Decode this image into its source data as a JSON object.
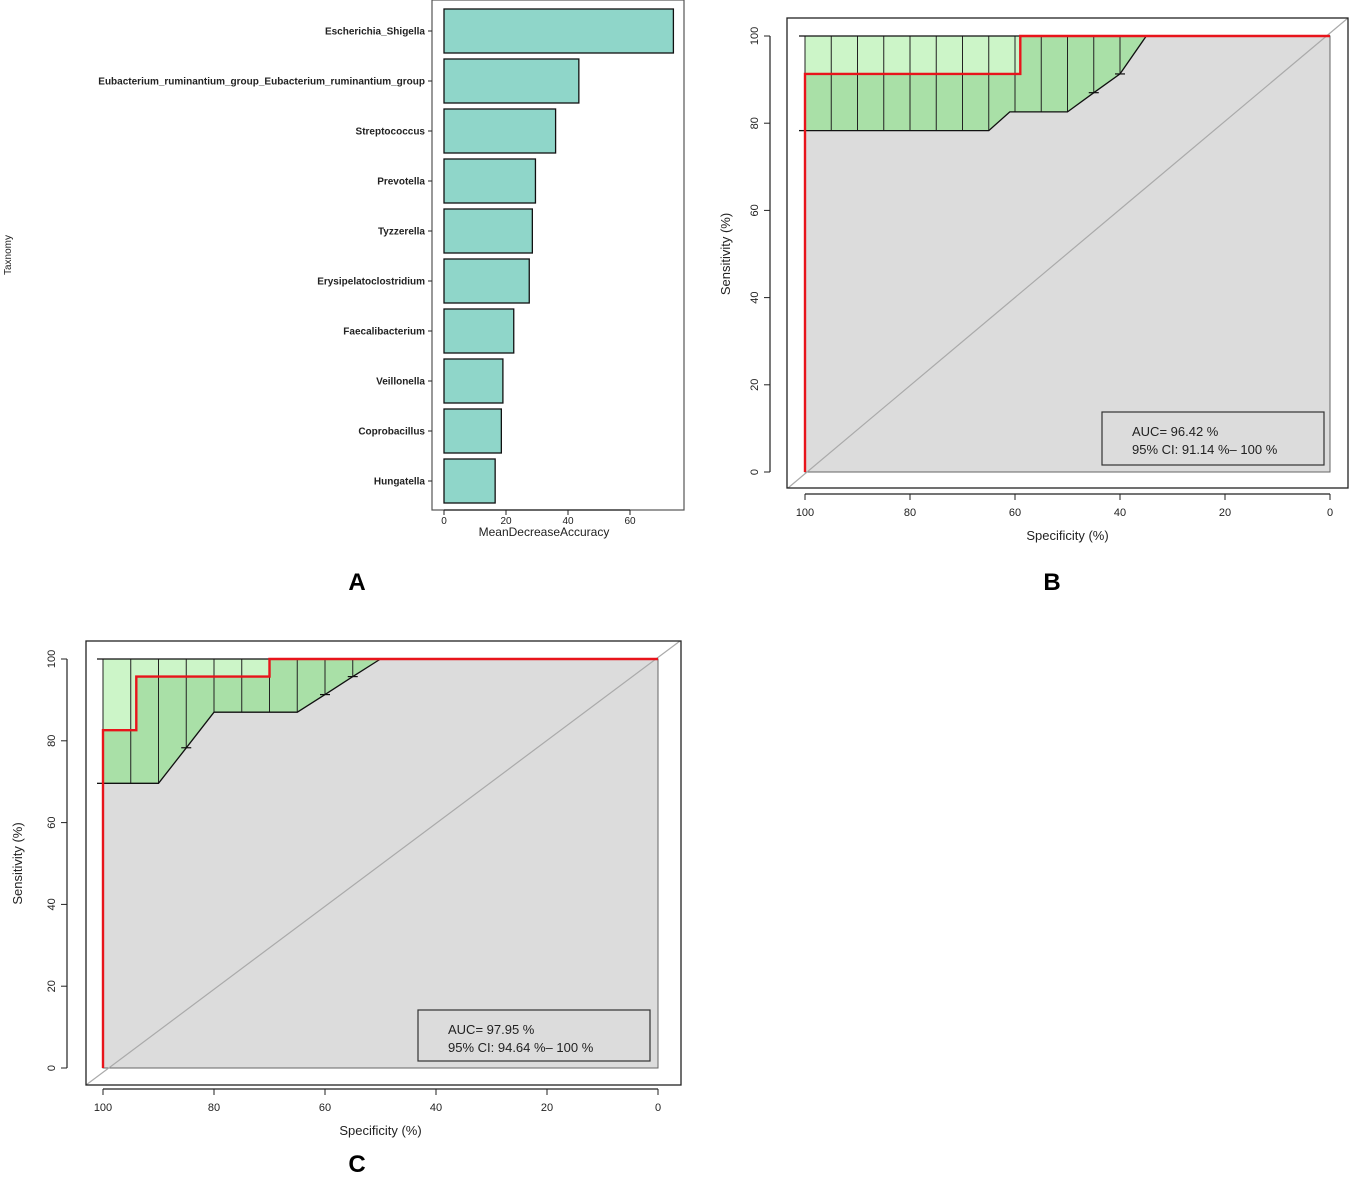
{
  "chart_data": [
    {
      "id": "A",
      "type": "bar",
      "orientation": "horizontal",
      "panel_label": "A",
      "categories": [
        "Escherichia_Shigella",
        "Eubacterium_ruminantium_group_Eubacterium_ruminantium_group",
        "Streptococcus",
        "Prevotella",
        "Tyzzerella",
        "Erysipelatoclostridium",
        "Faecalibacterium",
        "Veillonella",
        "Coprobacillus",
        "Hungatella"
      ],
      "values": [
        74,
        43.5,
        36,
        29.5,
        28.5,
        27.5,
        22.5,
        19,
        18.5,
        16.5
      ],
      "xlabel": "MeanDecreaseAccuracy",
      "ylabel": "Taxnomy",
      "xticks": [
        0,
        20,
        40,
        60
      ],
      "xlim": [
        0,
        78
      ],
      "colors": {
        "bar": "#8fd6c9"
      }
    },
    {
      "id": "B",
      "type": "line",
      "subtype": "roc",
      "panel_label": "B",
      "xlabel": "Specificity (%)",
      "ylabel": "Sensitivity (%)",
      "xticks": [
        100,
        80,
        60,
        40,
        20,
        0
      ],
      "yticks": [
        0,
        20,
        40,
        60,
        80,
        100
      ],
      "xlim": [
        100,
        0
      ],
      "ylim": [
        0,
        100
      ],
      "auc_text": "AUC= 96.42 %",
      "ci_text": "95% CI: 91.14 %– 100 %",
      "roc": {
        "x": [
          100,
          100,
          59,
          59,
          0
        ],
        "y": [
          0,
          91.3,
          91.3,
          100,
          100
        ]
      },
      "ci_lower": {
        "x": [
          100,
          65,
          61,
          50,
          45,
          40,
          35
        ],
        "y": [
          78.3,
          78.3,
          82.6,
          82.6,
          87,
          91.3,
          100
        ]
      },
      "ci_upper": {
        "x": [
          100,
          35
        ],
        "y": [
          100,
          100
        ]
      },
      "ci_bin_x": [
        100,
        95,
        90,
        85,
        80,
        75,
        70,
        65,
        60,
        55,
        50,
        45,
        40
      ],
      "ci_ticks": [
        {
          "x": 45,
          "y": 87
        },
        {
          "x": 40,
          "y": 91.3
        }
      ],
      "colors": {
        "roc": "#e8141b",
        "ci_light": "#ccf5c8",
        "ci_dark": "#a9e0a7",
        "panel_bg": "#dcdcdc",
        "diag": "#aaaaaa"
      }
    },
    {
      "id": "C",
      "type": "line",
      "subtype": "roc",
      "panel_label": "C",
      "xlabel": "Specificity (%)",
      "ylabel": "Sensitivity (%)",
      "xticks": [
        100,
        80,
        60,
        40,
        20,
        0
      ],
      "yticks": [
        0,
        20,
        40,
        60,
        80,
        100
      ],
      "xlim": [
        100,
        0
      ],
      "ylim": [
        0,
        100
      ],
      "auc_text": "AUC= 97.95 %",
      "ci_text": "95% CI: 94.64 %– 100 %",
      "roc": {
        "x": [
          100,
          100,
          94,
          94,
          70,
          70,
          0
        ],
        "y": [
          0,
          82.6,
          82.6,
          95.7,
          95.7,
          100,
          100
        ]
      },
      "ci_lower": {
        "x": [
          100,
          90,
          85,
          80,
          65,
          60,
          55,
          50
        ],
        "y": [
          69.6,
          69.6,
          78.3,
          87,
          87,
          91.3,
          95.7,
          100
        ]
      },
      "ci_upper": {
        "x": [
          100,
          50
        ],
        "y": [
          100,
          100
        ]
      },
      "ci_bin_x": [
        100,
        95,
        90,
        85,
        80,
        75,
        70,
        65,
        60,
        55,
        50
      ],
      "ci_ticks": [
        {
          "x": 85,
          "y": 78.3
        },
        {
          "x": 60,
          "y": 91.3
        },
        {
          "x": 55,
          "y": 95.7
        }
      ],
      "colors": {
        "roc": "#e8141b",
        "ci_light": "#ccf5c8",
        "ci_dark": "#a9e0a7",
        "panel_bg": "#dcdcdc",
        "diag": "#aaaaaa"
      }
    }
  ]
}
